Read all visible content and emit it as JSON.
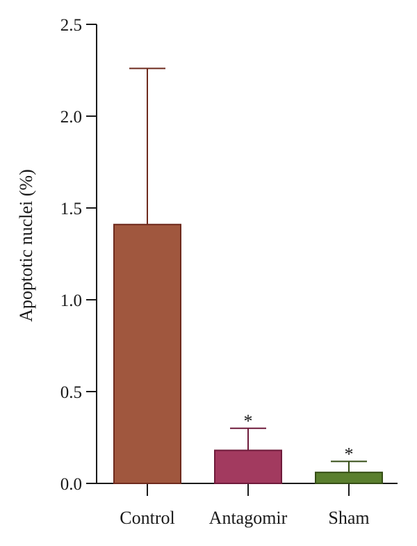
{
  "chart_data": {
    "type": "bar",
    "ylabel": "Apoptotic nuclei (%)",
    "xlabel": "",
    "ylim": [
      0,
      2.5
    ],
    "yticks": [
      "0.0",
      "0.5",
      "1.0",
      "1.5",
      "2.0",
      "2.5"
    ],
    "grid": false,
    "categories": [
      "Control",
      "Antagomir",
      "Sham"
    ],
    "values": [
      1.41,
      0.18,
      0.06
    ],
    "error_upper": [
      2.26,
      0.3,
      0.12
    ],
    "annotations": [
      "",
      "*",
      "*"
    ],
    "bar_fill_colors": [
      "#a0573e",
      "#a23a5f",
      "#5a7f2e"
    ],
    "bar_edge_colors": [
      "#6e2a1d",
      "#6e1a3a",
      "#344d15"
    ]
  }
}
